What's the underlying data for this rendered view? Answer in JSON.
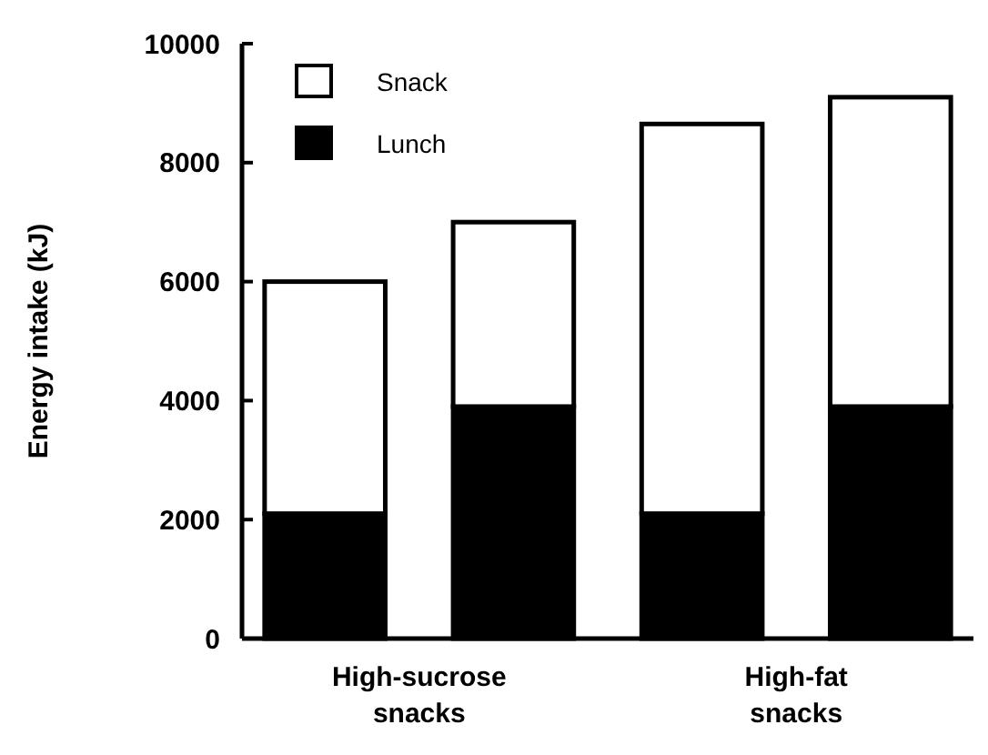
{
  "chart_data": {
    "type": "bar",
    "stacked": true,
    "ylabel": "Energy intake (kJ)",
    "categories": [
      null,
      null,
      null,
      null
    ],
    "annotations": [
      "High-sucrose snacks",
      "High-fat snacks"
    ],
    "series": [
      {
        "name": "Lunch",
        "color": "#000000",
        "values": [
          2100,
          3900,
          2100,
          3900
        ]
      },
      {
        "name": "Snack",
        "color": "#ffffff",
        "values": [
          3900,
          3100,
          6550,
          5200
        ]
      }
    ],
    "ylim": [
      0,
      10000
    ],
    "yticks": [
      0,
      2000,
      4000,
      6000,
      8000,
      10000
    ],
    "legend": "top left"
  }
}
